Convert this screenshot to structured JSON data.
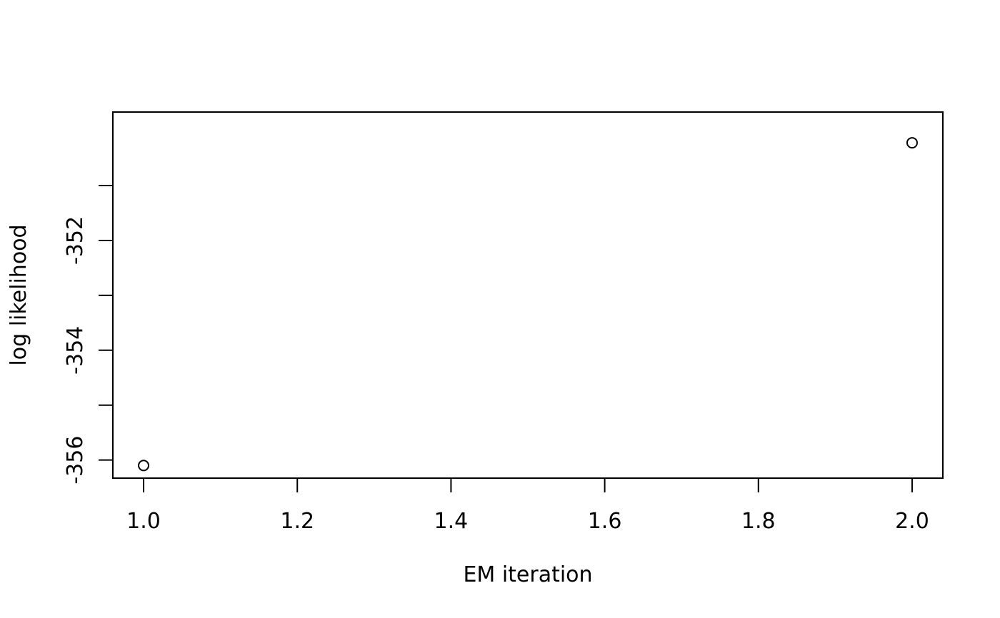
{
  "chart_data": {
    "type": "scatter",
    "title": "",
    "xlabel": "EM iteration",
    "ylabel": "log likelihood",
    "xlim": [
      0.96,
      2.04
    ],
    "ylim": [
      -356.33,
      -349.66
    ],
    "x_ticks": [
      1.0,
      1.2,
      1.4,
      1.6,
      1.8,
      2.0
    ],
    "x_tick_labels": [
      "1.0",
      "1.2",
      "1.4",
      "1.6",
      "1.8",
      "2.0"
    ],
    "y_ticks": [
      -356,
      -355,
      -354,
      -353,
      -352,
      -351
    ],
    "y_tick_labels": [
      "-356",
      "",
      "-354",
      "",
      "-352",
      ""
    ],
    "grid": false,
    "marker": "open-circle",
    "x": [
      1,
      2
    ],
    "y": [
      -356.1,
      -350.22
    ],
    "colors": {
      "foreground": "#000000",
      "background": "#ffffff"
    }
  }
}
